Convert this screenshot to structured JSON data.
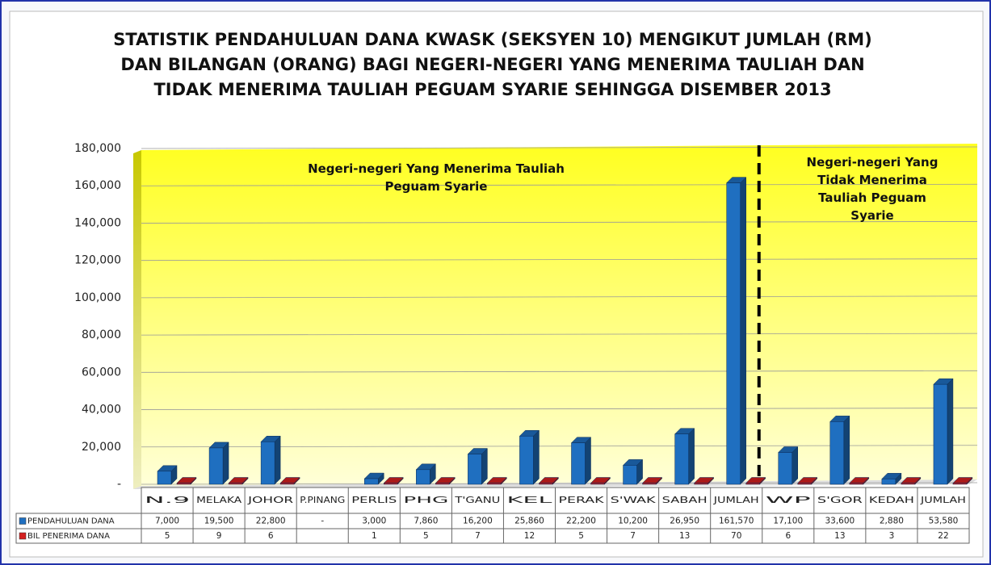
{
  "chart_data": {
    "type": "bar",
    "title": "STATISTIK PENDAHULUAN DANA KWASK (SEKSYEN 10) MENGIKUT JUMLAH (RM) DAN BILANGAN (ORANG) BAGI NEGERI-NEGERI YANG MENERIMA TAULIAH DAN TIDAK MENERIMA TAULIAH PEGUAM SYARIE SEHINGGA DISEMBER 2013",
    "annotations": [
      "Negeri-negeri  Yang Menerima Tauliah Peguam Syarie",
      "Negeri-negeri Yang Tidak Menerima Tauliah Peguam Syarie"
    ],
    "categories": [
      "N.9",
      "MELAKA",
      "JOHOR",
      "P.PINANG",
      "PERLIS",
      "PHG",
      "T'GANU",
      "KEL",
      "PERAK",
      "S'WAK",
      "SABAH",
      "JUMLAH",
      "WP",
      "S'GOR",
      "KEDAH",
      "JUMLAH"
    ],
    "series": [
      {
        "name": "PENDAHULUAN DANA",
        "color": "#1f6fc0",
        "values": [
          7000,
          19500,
          22800,
          null,
          3000,
          7860,
          16200,
          25860,
          22200,
          10200,
          26950,
          161570,
          17100,
          33600,
          2880,
          53580
        ],
        "value_labels": [
          "7,000",
          "19,500",
          "22,800",
          "-",
          "3,000",
          "7,860",
          "16,200",
          "25,860",
          "22,200",
          "10,200",
          "26,950",
          "161,570",
          "17,100",
          "33,600",
          "2,880",
          "53,580"
        ]
      },
      {
        "name": "BIL PENERIMA DANA",
        "color": "#d42020",
        "values": [
          5,
          9,
          6,
          null,
          1,
          5,
          7,
          12,
          5,
          7,
          13,
          70,
          6,
          13,
          3,
          22
        ]
      }
    ],
    "ylim": [
      0,
      180000
    ],
    "yticks": [
      {
        "value": 0,
        "label": "-"
      },
      {
        "value": 20000,
        "label": "20,000"
      },
      {
        "value": 40000,
        "label": "40,000"
      },
      {
        "value": 60000,
        "label": "60,000"
      },
      {
        "value": 80000,
        "label": "80,000"
      },
      {
        "value": 100000,
        "label": "100,000"
      },
      {
        "value": 120000,
        "label": "120,000"
      },
      {
        "value": 140000,
        "label": "140,000"
      },
      {
        "value": 160000,
        "label": "160,000"
      },
      {
        "value": 180000,
        "label": "180,000"
      }
    ],
    "grid": true
  }
}
